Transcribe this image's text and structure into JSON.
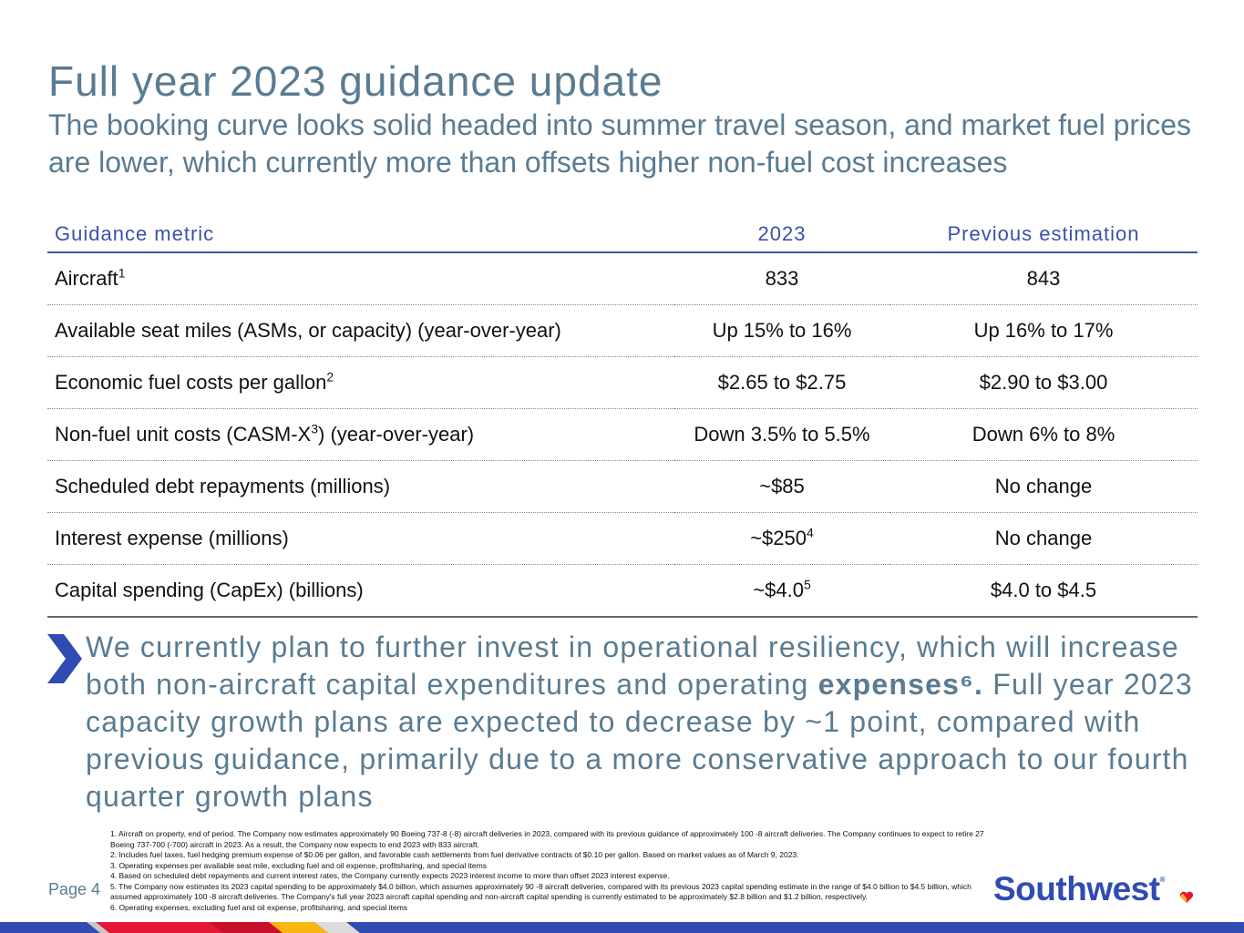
{
  "header": {
    "title": "Full year 2023 guidance update",
    "subtitle": "The booking curve looks solid headed into summer travel season, and market fuel prices are lower, which currently more than offsets higher non-fuel cost increases"
  },
  "table": {
    "headers": [
      "Guidance metric",
      "2023",
      "Previous estimation"
    ],
    "rows": [
      {
        "metric": "Aircraft",
        "metric_sup": "1",
        "metric_tail": "",
        "y2023": "833",
        "y2023_sup": "",
        "prev": "843"
      },
      {
        "metric": "Available seat miles (ASMs, or capacity) (year-over-year)",
        "metric_sup": "",
        "metric_tail": "",
        "y2023": "Up 15% to 16%",
        "y2023_sup": "",
        "prev": "Up 16% to 17%"
      },
      {
        "metric": "Economic fuel costs per gallon",
        "metric_sup": "2",
        "metric_tail": "",
        "y2023": "$2.65 to $2.75",
        "y2023_sup": "",
        "prev": "$2.90 to $3.00"
      },
      {
        "metric": "Non-fuel unit costs (CASM-X",
        "metric_sup": "3",
        "metric_tail": ") (year-over-year)",
        "y2023": "Down 3.5% to 5.5%",
        "y2023_sup": "",
        "prev": "Down 6% to 8%"
      },
      {
        "metric": "Scheduled debt repayments (millions)",
        "metric_sup": "",
        "metric_tail": "",
        "y2023": "~$85",
        "y2023_sup": "",
        "prev": "No change"
      },
      {
        "metric": "Interest expense (millions)",
        "metric_sup": "",
        "metric_tail": "",
        "y2023": "~$250",
        "y2023_sup": "4",
        "prev": "No change"
      },
      {
        "metric": "Capital spending (CapEx) (billions)",
        "metric_sup": "",
        "metric_tail": "",
        "y2023": "~$4.0",
        "y2023_sup": "5",
        "prev": "$4.0 to $4.5"
      }
    ]
  },
  "callout": {
    "text_a": "We currently plan to further invest in operational resiliency, which will increase both non-aircraft capital expenditures and operating ",
    "text_bold": "expenses⁶.",
    "text_b": " Full year 2023 capacity growth plans are expected to decrease by ~1 point, compared with previous guidance, primarily due to a more conservative approach to our fourth quarter growth plans"
  },
  "footnotes": [
    "1. Aircraft on property, end of period. The Company now estimates approximately 90 Boeing 737-8 (-8) aircraft deliveries in 2023, compared with its previous guidance of approximately 100 -8 aircraft deliveries. The Company continues to expect to retire 27 Boeing 737-700 (-700) aircraft in 2023. As a result, the Company now expects to end 2023 with 833 aircraft.",
    "2. Includes fuel taxes, fuel hedging premium expense of $0.06 per gallon, and favorable cash settlements from fuel derivative contracts of $0.10 per gallon. Based on market values as of March 9, 2023.",
    "3. Operating expenses per available seat mile, excluding fuel and oil expense, profitsharing, and special items",
    "4. Based on scheduled debt repayments and current interest rates, the Company currently expects 2023 interest income to more than offset 2023 interest expense.",
    "5. The Company now estimates its 2023 capital spending to be approximately $4.0 billion, which assumes approximately 90 -8 aircraft deliveries, compared with its previous 2023 capital spending estimate in the range of $4.0 billion to $4.5 billion, which assumed approximately 100 -8 aircraft deliveries. The Company's full year 2023 aircraft capital spending and non-aircraft capital spending is currently estimated to be approximately $2.8 billion and $1.2 billion, respectively.",
    "6. Operating expenses, excluding fuel and oil expense, profitsharing, and special items"
  ],
  "footer": {
    "page_label": "Page 4",
    "logo_text": "Southwest",
    "logo_reg": "®"
  },
  "colors": {
    "title": "#5a7b92",
    "accent_blue": "#304cb2",
    "header_text": "#3a52a8",
    "heart_red": "#e31837",
    "heart_yellow": "#f9b612"
  }
}
